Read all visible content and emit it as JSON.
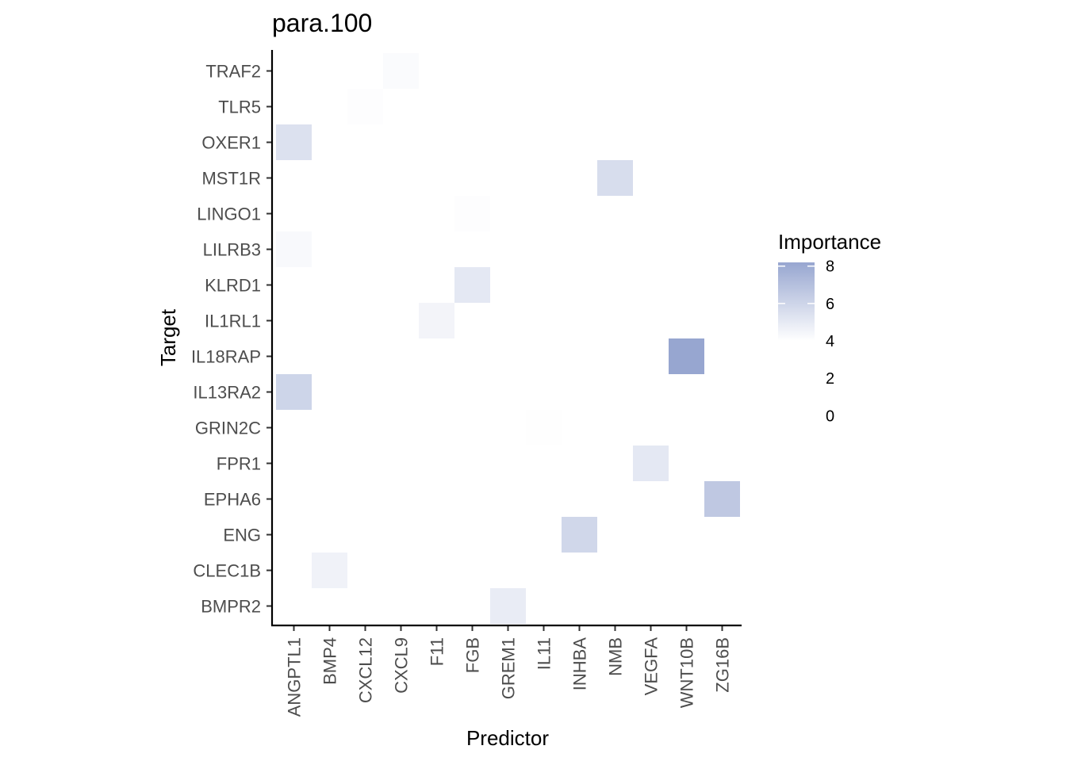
{
  "chart_data": {
    "type": "heatmap",
    "title": "para.100",
    "xlabel": "Predictor",
    "ylabel": "Target",
    "x_categories": [
      "ANGPTL1",
      "BMP4",
      "CXCL12",
      "CXCL9",
      "F11",
      "FGB",
      "GREM1",
      "IL11",
      "INHBA",
      "NMB",
      "VEGFA",
      "WNT10B",
      "ZG16B"
    ],
    "y_categories": [
      "BMPR2",
      "CLEC1B",
      "ENG",
      "EPHA6",
      "FPR1",
      "GRIN2C",
      "IL13RA2",
      "IL18RAP",
      "IL1RL1",
      "KLRD1",
      "LILRB3",
      "LINGO1",
      "MST1R",
      "OXER1",
      "TLR5",
      "TRAF2"
    ],
    "cells": [
      {
        "x": "CXCL9",
        "y": "TRAF2",
        "value": 4.2
      },
      {
        "x": "CXCL12",
        "y": "TLR5",
        "value": 4.1
      },
      {
        "x": "ANGPTL1",
        "y": "OXER1",
        "value": 5.4
      },
      {
        "x": "NMB",
        "y": "MST1R",
        "value": 5.6
      },
      {
        "x": "FGB",
        "y": "LINGO1",
        "value": 4.1
      },
      {
        "x": "ANGPTL1",
        "y": "LILRB3",
        "value": 4.3
      },
      {
        "x": "FGB",
        "y": "KLRD1",
        "value": 5.1
      },
      {
        "x": "F11",
        "y": "IL1RL1",
        "value": 4.5
      },
      {
        "x": "WNT10B",
        "y": "IL18RAP",
        "value": 8.2
      },
      {
        "x": "ANGPTL1",
        "y": "IL13RA2",
        "value": 6.0
      },
      {
        "x": "IL11",
        "y": "GRIN2C",
        "value": 4.05
      },
      {
        "x": "VEGFA",
        "y": "FPR1",
        "value": 5.1
      },
      {
        "x": "ZG16B",
        "y": "EPHA6",
        "value": 6.6
      },
      {
        "x": "INHBA",
        "y": "ENG",
        "value": 5.9
      },
      {
        "x": "BMP4",
        "y": "CLEC1B",
        "value": 4.6
      },
      {
        "x": "GREM1",
        "y": "BMPR2",
        "value": 4.9
      }
    ],
    "legend": {
      "title": "Importance",
      "ticks": [
        8,
        6,
        4,
        2,
        0
      ],
      "range": [
        4,
        8.2
      ],
      "low_color": "#ffffff",
      "high_color": "#97a6d0",
      "placement": "right"
    }
  }
}
